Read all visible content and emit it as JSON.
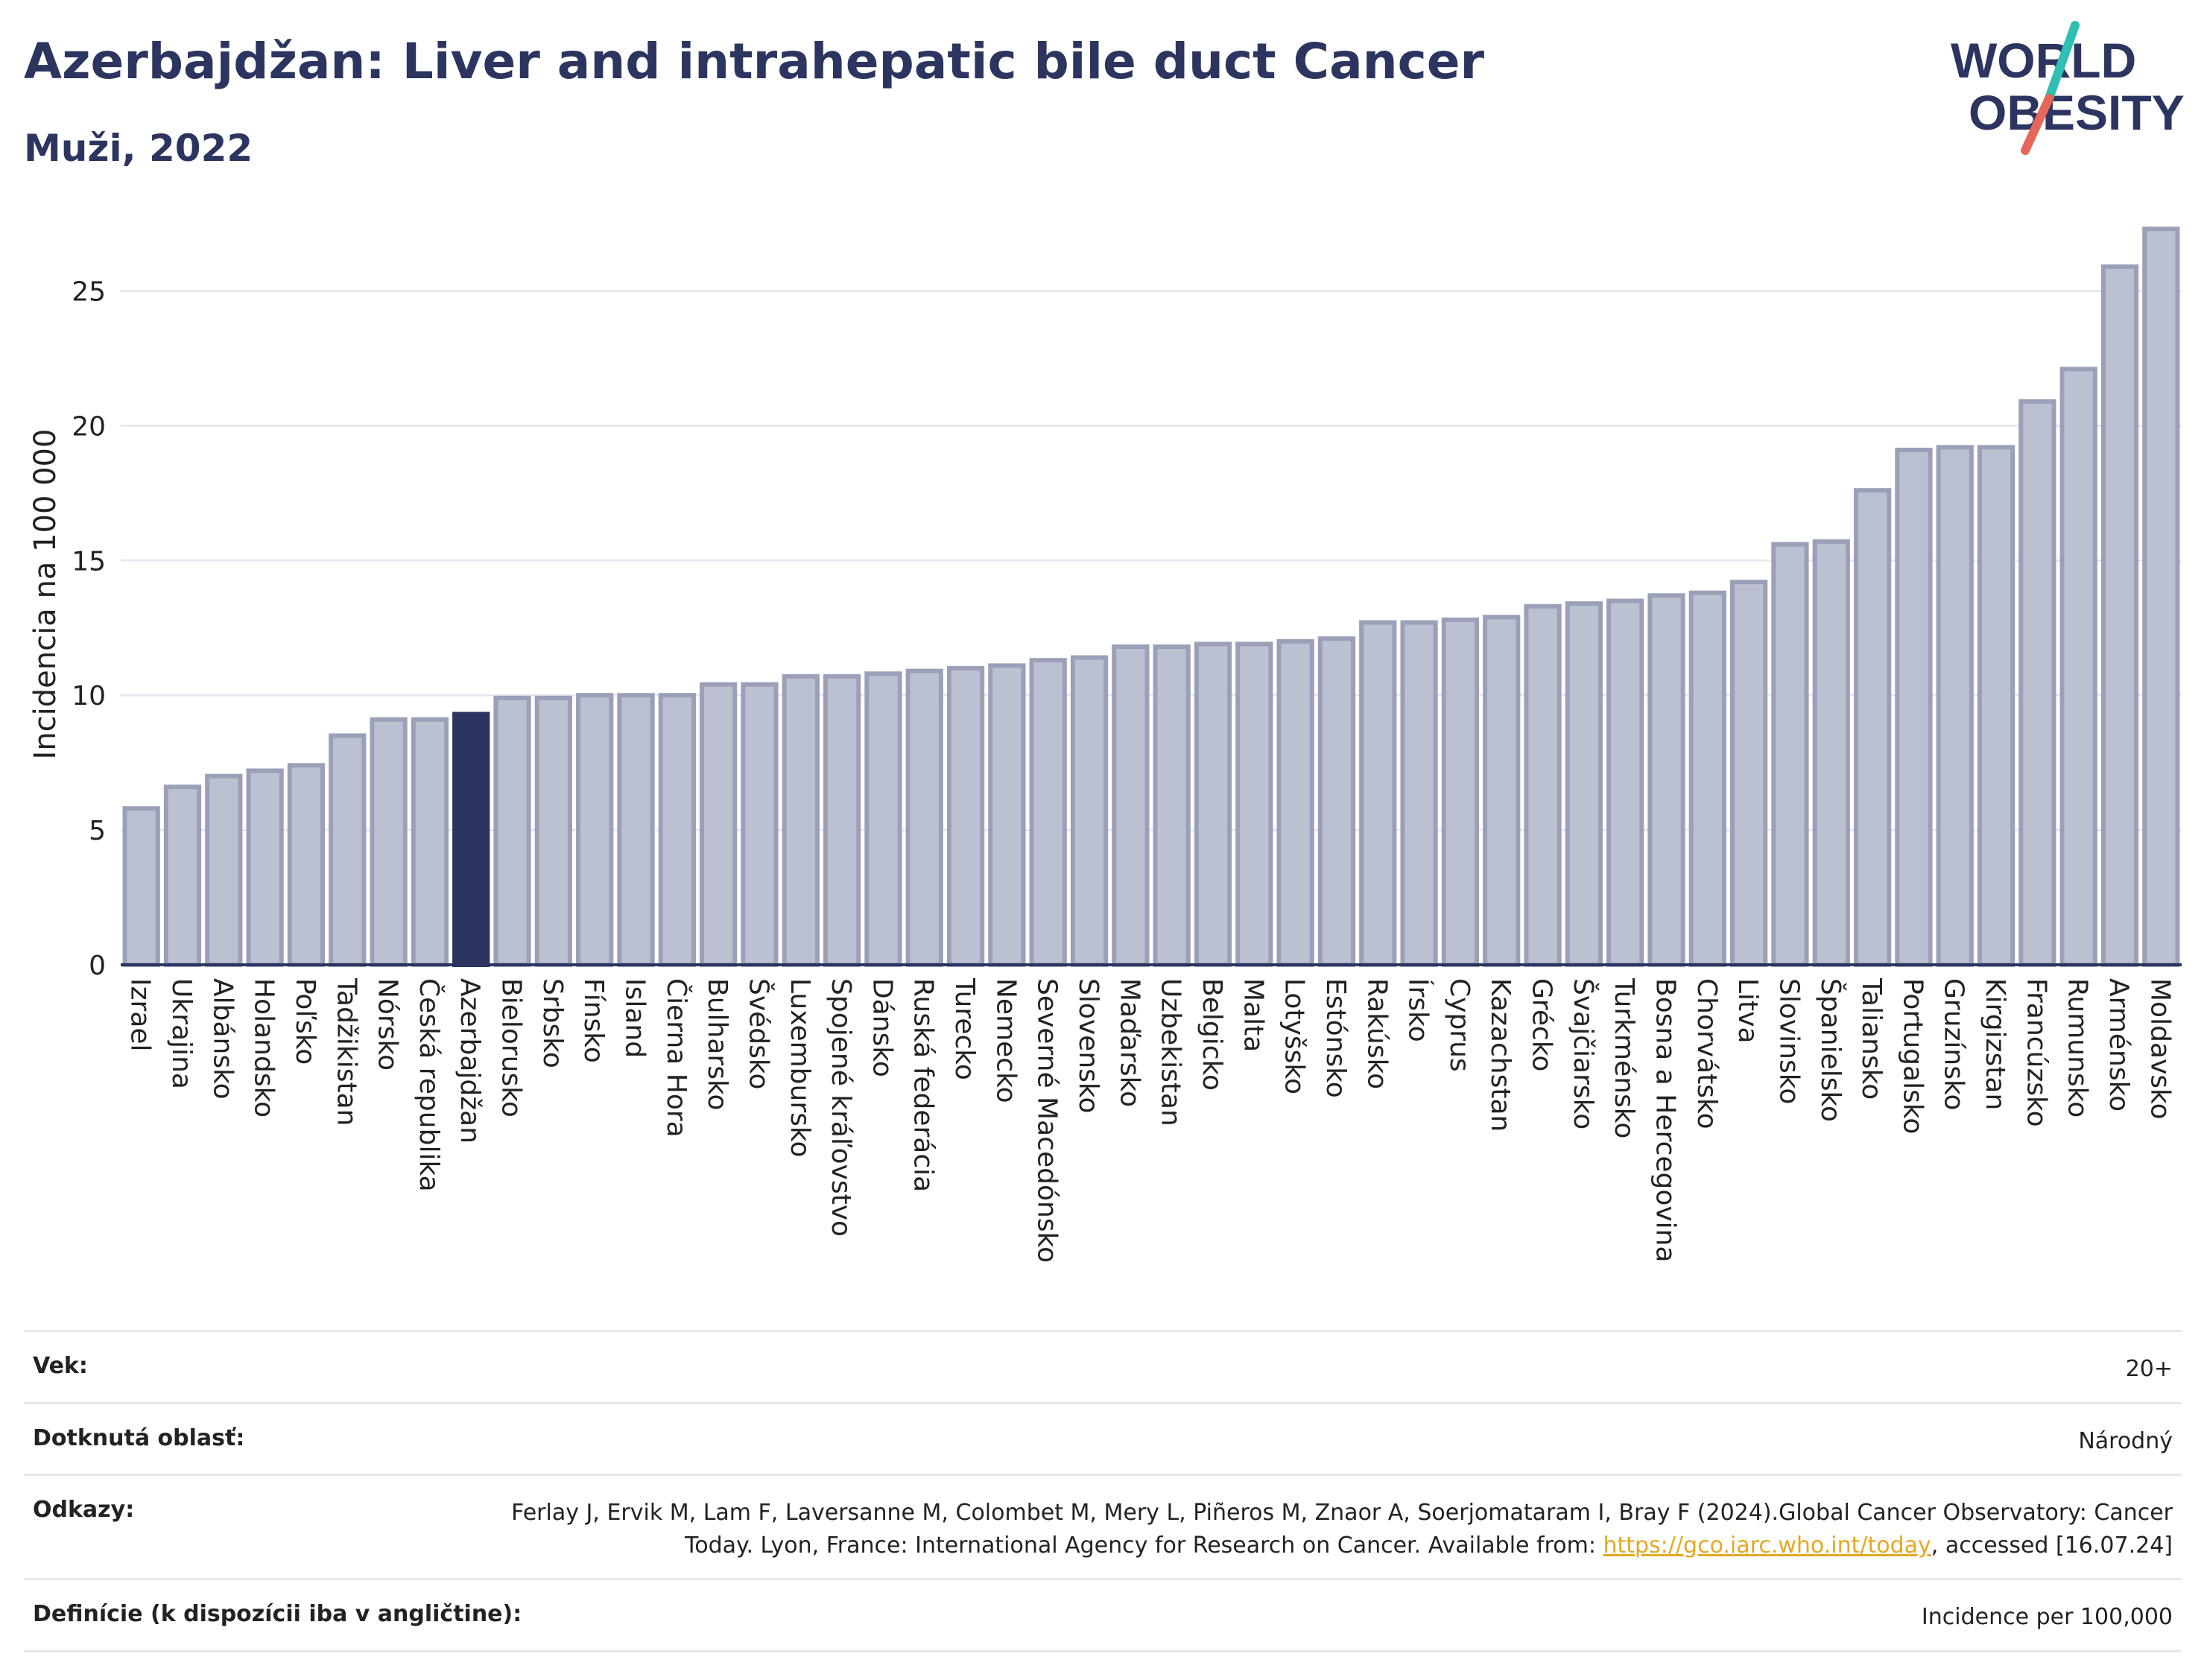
{
  "title": "Azerbajdžan: Liver and intrahepatic bile duct Cancer",
  "subtitle": "Muži, 2022",
  "logo": {
    "line1": "WORLD",
    "line2": "OBESITY"
  },
  "colors": {
    "bar": "#bcc1d1",
    "bar_stroke": "#9aa0b8",
    "highlight": "#2b3560",
    "grid": "#e6e8ef",
    "accent_teal": "#2fbfb3",
    "accent_red": "#e5675a"
  },
  "chart_data": {
    "type": "bar",
    "ylabel": "Incidencia na 100 000",
    "ylim": [
      0,
      27.5
    ],
    "yticks": [
      0,
      5,
      10,
      15,
      20,
      25
    ],
    "highlight": "Azerbajdžan",
    "categories": [
      "Izrael",
      "Ukrajina",
      "Albánsko",
      "Holandsko",
      "Poľsko",
      "Tadžikistan",
      "Nórsko",
      "Česká republika",
      "Azerbajdžan",
      "Bielorusko",
      "Srbsko",
      "Fínsko",
      "Island",
      "Čierna Hora",
      "Bulharsko",
      "Švédsko",
      "Luxembursko",
      "Spojené kráľovstvo",
      "Dánsko",
      "Ruská federácia",
      "Turecko",
      "Nemecko",
      "Severné Macedónsko",
      "Slovensko",
      "Maďarsko",
      "Uzbekistan",
      "Belgicko",
      "Malta",
      "Lotyšsko",
      "Estónsko",
      "Rakúsko",
      "Írsko",
      "Cyprus",
      "Kazachstan",
      "Grécko",
      "Švajčiarsko",
      "Turkménsko",
      "Bosna a Hercegovina",
      "Chorvátsko",
      "Litva",
      "Slovinsko",
      "Španielsko",
      "Taliansko",
      "Portugalsko",
      "Gruzínsko",
      "Kirgizstan",
      "Francúzsko",
      "Rumunsko",
      "Arménsko",
      "Moldavsko"
    ],
    "values": [
      5.8,
      6.6,
      7.0,
      7.2,
      7.4,
      8.5,
      9.1,
      9.1,
      9.3,
      9.9,
      9.9,
      10.0,
      10.0,
      10.0,
      10.4,
      10.4,
      10.7,
      10.7,
      10.8,
      10.9,
      11.0,
      11.1,
      11.3,
      11.4,
      11.8,
      11.8,
      11.9,
      11.9,
      12.0,
      12.1,
      12.7,
      12.7,
      12.8,
      12.9,
      13.3,
      13.4,
      13.5,
      13.7,
      13.8,
      14.2,
      15.6,
      15.7,
      17.6,
      19.1,
      19.2,
      19.2,
      20.9,
      22.1,
      25.9,
      27.3
    ]
  },
  "meta": {
    "age_label": "Vek:",
    "age_value": "20+",
    "area_label": "Dotknutá oblasť:",
    "area_value": "Národný",
    "refs_label": "Odkazy:",
    "refs_text": "Ferlay J, Ervik M, Lam F, Laversanne M, Colombet M, Mery L, Piñeros M, Znaor A, Soerjomataram I, Bray F (2024).Global Cancer Observatory: Cancer Today. Lyon, France: International Agency for Research on Cancer. Available from:",
    "refs_link": "https://gco.iarc.who.int/today",
    "refs_after": ", accessed [16.07.24]",
    "def_label": "Definície (k dispozícii iba v angličtine):",
    "def_value": "Incidence per 100,000"
  }
}
